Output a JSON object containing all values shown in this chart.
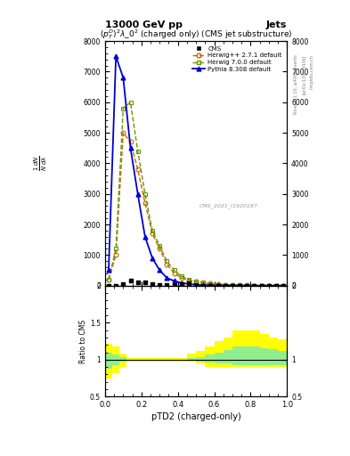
{
  "title": "13000 GeV pp",
  "title_right": "Jets",
  "subplot_title": "$(p_T^D)^2\\lambda\\_0^2$ (charged only) (CMS jet substructure)",
  "watermark": "CMS_2021_I1920187",
  "rivet_label": "Rivet 3.1.10, ≥400k events",
  "arxiv_label": "[arXiv:1306.3436]",
  "mcplots_label": "mcplots.cern.ch",
  "xlabel": "pTD2 (charged-only)",
  "ylabel_main": "$\\mathrm{1/N\\,dN/d\\lambda}$",
  "ylabel_ratio": "Ratio to CMS",
  "xlim": [
    0,
    1
  ],
  "ylim_main": [
    0,
    8000
  ],
  "ylim_ratio": [
    0.5,
    2.0
  ],
  "x_data": [
    0.02,
    0.06,
    0.1,
    0.14,
    0.18,
    0.22,
    0.26,
    0.3,
    0.34,
    0.38,
    0.42,
    0.46,
    0.5,
    0.54,
    0.58,
    0.62,
    0.66,
    0.7,
    0.74,
    0.78,
    0.82,
    0.86,
    0.9,
    0.94,
    0.98
  ],
  "cms_data": [
    0,
    0,
    50,
    150,
    100,
    100,
    50,
    30,
    30,
    30,
    60,
    80,
    30,
    0,
    0,
    0,
    0,
    0,
    0,
    0,
    0,
    0,
    0,
    0,
    0
  ],
  "herwig271_data": [
    200,
    1000,
    5000,
    4700,
    3800,
    2700,
    1700,
    1200,
    700,
    400,
    250,
    170,
    130,
    100,
    70,
    50,
    30,
    20,
    10,
    5,
    3,
    2,
    1,
    0,
    0
  ],
  "herwig700_data": [
    200,
    1200,
    5800,
    6000,
    4400,
    3000,
    1800,
    1300,
    800,
    500,
    300,
    200,
    130,
    80,
    50,
    30,
    15,
    10,
    5,
    3,
    2,
    1,
    0,
    0,
    0
  ],
  "pythia8_data": [
    500,
    7500,
    6800,
    4500,
    3000,
    1600,
    900,
    500,
    250,
    150,
    90,
    50,
    30,
    15,
    8,
    5,
    3,
    2,
    1,
    0,
    0,
    0,
    0,
    0,
    0
  ],
  "herwig271_color": "#cc6600",
  "herwig700_color": "#669900",
  "pythia8_color": "#0000cc",
  "cms_color": "#000000",
  "ratio_x_edges": [
    0.0,
    0.04,
    0.08,
    0.12,
    0.16,
    0.2,
    0.24,
    0.28,
    0.32,
    0.36,
    0.4,
    0.45,
    0.5,
    0.55,
    0.6,
    0.65,
    0.7,
    0.75,
    0.8,
    0.85,
    0.9,
    0.95,
    1.0
  ],
  "ratio_yellow_low": [
    0.75,
    0.82,
    0.9,
    0.97,
    0.97,
    0.97,
    0.97,
    0.97,
    0.97,
    0.97,
    0.97,
    0.97,
    0.95,
    0.9,
    0.9,
    0.9,
    0.9,
    0.9,
    0.9,
    0.9,
    0.9,
    0.9
  ],
  "ratio_yellow_high": [
    1.22,
    1.18,
    1.08,
    1.02,
    1.02,
    1.02,
    1.02,
    1.02,
    1.02,
    1.02,
    1.02,
    1.08,
    1.12,
    1.18,
    1.25,
    1.3,
    1.4,
    1.4,
    1.4,
    1.35,
    1.3,
    1.28
  ],
  "ratio_green_low": [
    0.88,
    0.93,
    0.97,
    1.0,
    1.0,
    1.0,
    1.0,
    1.0,
    1.0,
    1.0,
    1.0,
    0.99,
    0.98,
    0.96,
    0.95,
    0.95,
    0.93,
    0.93,
    0.93,
    0.93,
    0.93,
    0.93
  ],
  "ratio_green_high": [
    1.1,
    1.07,
    1.03,
    1.0,
    1.0,
    1.0,
    1.0,
    1.0,
    1.0,
    1.0,
    1.0,
    1.02,
    1.04,
    1.07,
    1.1,
    1.13,
    1.18,
    1.18,
    1.18,
    1.16,
    1.14,
    1.12
  ]
}
